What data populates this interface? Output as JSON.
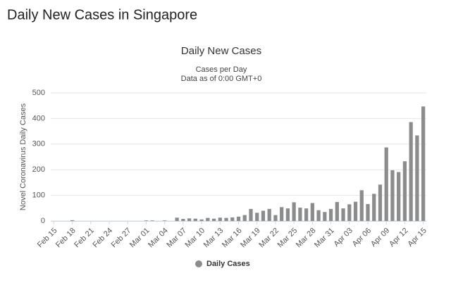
{
  "page_title": "Daily New Cases in Singapore",
  "chart_data": {
    "type": "bar",
    "title": "Daily New Cases",
    "subtitle": [
      "Cases per Day",
      "Data as of 0:00 GMT+0"
    ],
    "y_label": "Novel Coronavirus Daily Cases",
    "categories": [
      "Feb 15",
      null,
      null,
      "Feb 18",
      null,
      null,
      "Feb 21",
      null,
      null,
      "Feb 24",
      null,
      null,
      "Feb 27",
      null,
      null,
      "Mar 01",
      null,
      null,
      "Mar 04",
      null,
      null,
      "Mar 07",
      null,
      null,
      "Mar 10",
      null,
      null,
      "Mar 13",
      null,
      null,
      "Mar 16",
      null,
      null,
      "Mar 19",
      null,
      null,
      "Mar 22",
      null,
      null,
      "Mar 25",
      null,
      null,
      "Mar 28",
      null,
      null,
      "Mar 31",
      null,
      null,
      "Apr 03",
      null,
      null,
      "Apr 06",
      null,
      null,
      "Apr 09",
      null,
      null,
      "Apr 12",
      null,
      null,
      "Apr 15"
    ],
    "series": [
      {
        "name": "Daily Cases",
        "color": "#8c8c8c",
        "values": [
          0,
          0,
          0,
          3,
          0,
          0,
          0,
          0,
          0,
          0,
          0,
          0,
          0,
          0,
          0,
          2,
          2,
          0,
          2,
          0,
          13,
          8,
          10,
          9,
          6,
          12,
          9,
          13,
          12,
          14,
          17,
          23,
          47,
          32,
          40,
          47,
          23,
          54,
          49,
          73,
          52,
          49,
          70,
          42,
          35,
          47,
          74,
          49,
          65,
          75,
          120,
          66,
          106,
          142,
          287,
          198,
          191,
          233,
          386,
          334,
          447
        ]
      }
    ],
    "ylim": [
      0,
      500
    ],
    "yticks": [
      0,
      100,
      200,
      300,
      400,
      500
    ],
    "grid": true,
    "legend": "bottom"
  }
}
